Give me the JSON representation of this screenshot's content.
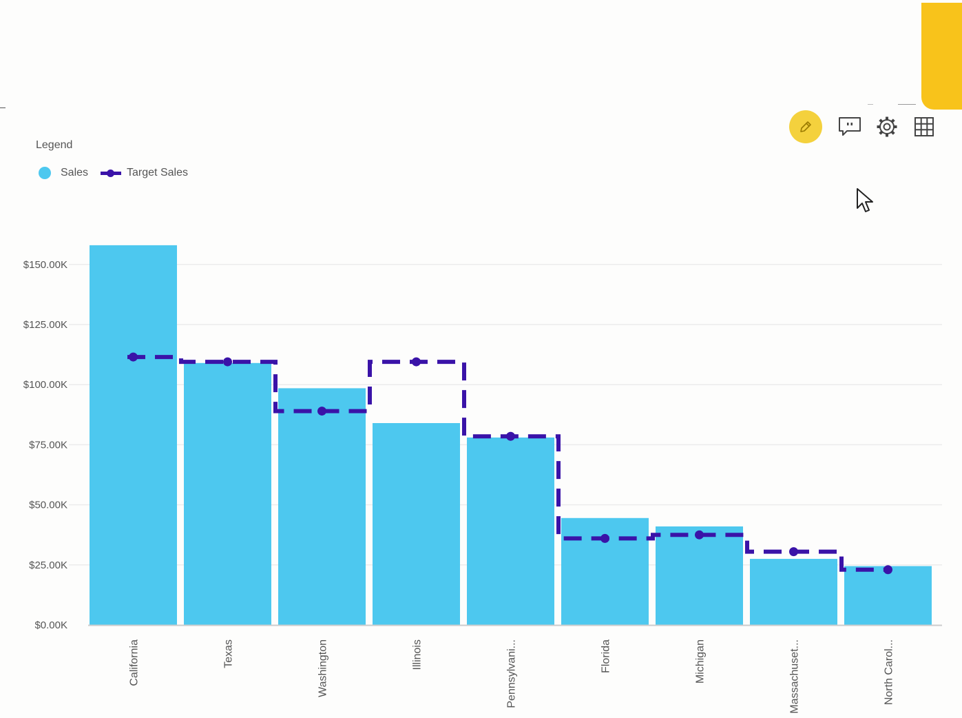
{
  "legend": {
    "title": "Legend",
    "items": [
      {
        "label": "Sales",
        "color": "#4dc8ef"
      },
      {
        "label": "Target Sales",
        "color": "#3a13a8"
      }
    ]
  },
  "toolbar": {
    "icons": [
      "pencil-icon",
      "comment-icon",
      "gear-icon",
      "table-icon"
    ],
    "accent": "#f4d13d"
  },
  "chart_data": {
    "type": "bar",
    "categories": [
      "California",
      "Texas",
      "Washington",
      "Illinois",
      "Pennsylvani...",
      "Florida",
      "Michigan",
      "Massachuset...",
      "North Carol..."
    ],
    "series": [
      {
        "name": "Sales",
        "type": "bar",
        "values": [
          158000,
          109000,
          98500,
          84000,
          78000,
          44500,
          41000,
          27500,
          24500
        ]
      },
      {
        "name": "Target Sales",
        "type": "line",
        "style": "dashed-step",
        "values": [
          111500,
          109500,
          89000,
          109500,
          78500,
          36000,
          37500,
          30500,
          23000
        ]
      }
    ],
    "y_ticks": [
      "$0.00K",
      "$25.00K",
      "$50.00K",
      "$75.00K",
      "$100.00K",
      "$125.00K",
      "$150.00K"
    ],
    "ylim": [
      0,
      160000
    ],
    "grid": true,
    "legend_position": "top-left",
    "colors": {
      "bar": "#4dc8ef",
      "line": "#3a13a8",
      "grid": "#ececec",
      "baseline": "#cccccc"
    }
  }
}
